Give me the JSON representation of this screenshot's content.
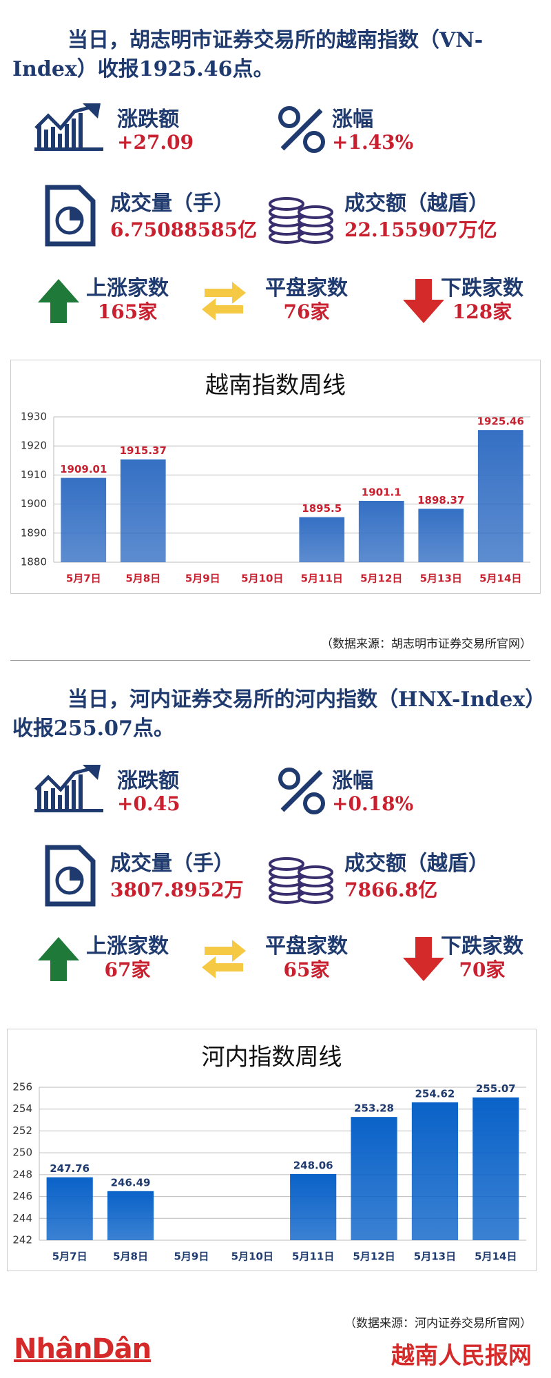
{
  "sections": [
    {
      "title": "当日，胡志明市证券交易所的越南指数（VN-Index）收报1925.46点。",
      "stats": [
        {
          "label": "涨跌额",
          "value": "+27.09"
        },
        {
          "label": "涨幅",
          "value": "+1.43%"
        },
        {
          "label": "成交量（手）",
          "value": "6.75088585亿"
        },
        {
          "label": "成交额（越盾）",
          "value": "22.155907万亿"
        }
      ],
      "counts": [
        {
          "label": "上涨家数",
          "value": "165家"
        },
        {
          "label": "平盘家数",
          "value": "76家"
        },
        {
          "label": "下跌家数",
          "value": "128家"
        }
      ],
      "source": "（数据来源：胡志明市证券交易所官网）"
    },
    {
      "title": "当日，河内证券交易所的河内指数（HNX-Index）收报255.07点。",
      "stats": [
        {
          "label": "涨跌额",
          "value": "+0.45"
        },
        {
          "label": "涨幅",
          "value": "+0.18%"
        },
        {
          "label": "成交量（手）",
          "value": "3807.8952万"
        },
        {
          "label": "成交额（越盾）",
          "value": "7866.8亿"
        }
      ],
      "counts": [
        {
          "label": "上涨家数",
          "value": "67家"
        },
        {
          "label": "平盘家数",
          "value": "65家"
        },
        {
          "label": "下跌家数",
          "value": "70家"
        }
      ],
      "source": "（数据来源：河内证券交易所官网）"
    }
  ],
  "chart_data": [
    {
      "type": "bar",
      "title": "越南指数周线",
      "categories": [
        "5月7日",
        "5月8日",
        "5月9日",
        "5月10日",
        "5月11日",
        "5月12日",
        "5月13日",
        "5月14日"
      ],
      "values": [
        1909.01,
        1915.37,
        null,
        null,
        1895.5,
        1901.1,
        1898.37,
        1925.46
      ],
      "color": "#3570c4",
      "ylim": [
        1880,
        1930
      ],
      "yticks": [
        1880,
        1890,
        1900,
        1910,
        1920,
        1930
      ],
      "grid": true
    },
    {
      "type": "bar",
      "title": "河内指数周线",
      "categories": [
        "5月7日",
        "5月8日",
        "5月9日",
        "5月10日",
        "5月11日",
        "5月12日",
        "5月13日",
        "5月14日"
      ],
      "values": [
        247.76,
        246.49,
        null,
        null,
        248.06,
        253.28,
        254.62,
        255.07
      ],
      "color": "#0a62c8",
      "ylim": [
        242,
        256
      ],
      "yticks": [
        242,
        244,
        246,
        248,
        250,
        252,
        254,
        256
      ],
      "grid": true
    }
  ],
  "footer": {
    "logo": "NhânDân",
    "site": "越南人民报网"
  }
}
